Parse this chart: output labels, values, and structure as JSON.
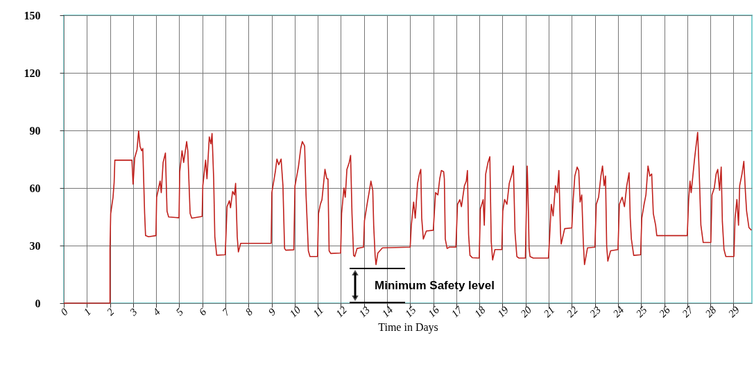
{
  "chart_data": {
    "type": "line",
    "xlabel": "Time in Days",
    "xlim": [
      0,
      29.8
    ],
    "xticks": [
      0,
      1,
      2,
      3,
      4,
      5,
      6,
      7,
      8,
      9,
      10,
      11,
      12,
      13,
      14,
      15,
      16,
      17,
      18,
      19,
      20,
      21,
      22,
      23,
      24,
      25,
      26,
      27,
      28,
      29
    ],
    "ylim": [
      0,
      150
    ],
    "yticks": [
      0,
      30,
      60,
      90,
      120,
      150
    ],
    "grid": true,
    "marker": "none",
    "line_style": "solid",
    "annotations": [
      "Minimum Safety level"
    ],
    "series": [
      {
        "color": "#c0201c",
        "x": [
          0,
          2.0,
          2.0,
          2.03,
          2.13,
          2.18,
          2.21,
          2.95,
          3.0,
          3.07,
          3.17,
          3.24,
          3.3,
          3.37,
          3.42,
          3.5,
          3.54,
          3.67,
          3.99,
          4.02,
          4.17,
          4.22,
          4.3,
          4.4,
          4.47,
          4.54,
          4.99,
          5.02,
          5.12,
          5.19,
          5.32,
          5.37,
          5.47,
          5.54,
          5.99,
          6.02,
          6.14,
          6.2,
          6.3,
          6.37,
          6.42,
          6.49,
          6.54,
          6.62,
          6.99,
          7.07,
          7.17,
          7.22,
          7.31,
          7.39,
          7.44,
          7.51,
          7.56,
          7.66,
          8.98,
          9.01,
          9.16,
          9.23,
          9.31,
          9.41,
          9.49,
          9.56,
          9.61,
          9.96,
          10.01,
          10.16,
          10.26,
          10.33,
          10.43,
          10.49,
          10.59,
          10.66,
          10.99,
          11.03,
          11.11,
          11.18,
          11.26,
          11.31,
          11.39,
          11.44,
          11.49,
          11.56,
          11.99,
          12.03,
          12.13,
          12.19,
          12.26,
          12.36,
          12.42,
          12.48,
          12.55,
          12.6,
          12.7,
          12.98,
          13.02,
          13.15,
          13.22,
          13.3,
          13.38,
          13.42,
          13.48,
          13.52,
          13.6,
          13.8,
          15.0,
          15.05,
          15.15,
          15.22,
          15.32,
          15.4,
          15.46,
          15.5,
          15.57,
          15.7,
          16.0,
          16.1,
          16.2,
          16.28,
          16.35,
          16.45,
          16.48,
          16.52,
          16.6,
          16.7,
          16.98,
          17.05,
          17.15,
          17.22,
          17.35,
          17.43,
          17.48,
          17.53,
          17.59,
          17.69,
          17.99,
          18.04,
          18.16,
          18.21,
          18.27,
          18.37,
          18.45,
          18.51,
          18.57,
          18.67,
          18.97,
          19.01,
          19.09,
          19.19,
          19.29,
          19.41,
          19.47,
          19.54,
          19.62,
          19.71,
          19.99,
          20.07,
          20.12,
          20.15,
          20.19,
          20.33,
          20.99,
          21.04,
          21.11,
          21.19,
          21.29,
          21.37,
          21.44,
          21.51,
          21.54,
          21.69,
          22.0,
          22.06,
          22.13,
          22.23,
          22.3,
          22.36,
          22.43,
          22.5,
          22.55,
          22.68,
          23.0,
          23.06,
          23.16,
          23.26,
          23.33,
          23.4,
          23.46,
          23.51,
          23.56,
          23.68,
          24.0,
          24.06,
          24.18,
          24.28,
          24.38,
          24.48,
          24.53,
          24.58,
          24.68,
          24.98,
          25.03,
          25.13,
          25.21,
          25.3,
          25.38,
          25.46,
          25.53,
          25.63,
          25.68,
          27.0,
          27.06,
          27.12,
          27.17,
          27.32,
          27.45,
          27.52,
          27.59,
          27.69,
          28.02,
          28.07,
          28.17,
          28.25,
          28.32,
          28.4,
          28.47,
          28.52,
          28.59,
          28.67,
          29.02,
          29.07,
          29.15,
          29.22,
          29.27,
          29.37,
          29.45,
          29.52,
          29.57,
          29.67,
          29.78
        ],
        "values": [
          0,
          0,
          28.5,
          46.7,
          55,
          63,
          74.5,
          74.5,
          62,
          75.7,
          80,
          89.7,
          81.8,
          79.4,
          80.6,
          46.7,
          35.2,
          34.6,
          35.2,
          55.2,
          63.6,
          57.6,
          73.3,
          78.2,
          47.9,
          44.9,
          44.5,
          68.5,
          79.4,
          73.3,
          84.2,
          79.4,
          46.7,
          44.3,
          45.2,
          61.2,
          74.5,
          64.8,
          86.6,
          83,
          88.4,
          64.8,
          34.6,
          25,
          25.2,
          50.3,
          53.4,
          49.7,
          58.2,
          56.4,
          62.4,
          34.6,
          26.7,
          31.2,
          31.2,
          57.6,
          68.5,
          75.1,
          72.1,
          75.1,
          61.2,
          28.5,
          27.6,
          27.8,
          61,
          71,
          80.6,
          84.2,
          81.8,
          56.4,
          27.3,
          24.3,
          24.3,
          46.7,
          51.5,
          53.9,
          63.6,
          69.7,
          64.8,
          64.8,
          27.3,
          25.9,
          26.1,
          46.7,
          60,
          55.2,
          69.7,
          73.3,
          77,
          46.7,
          24.9,
          24.3,
          28.5,
          29.2,
          43,
          52.7,
          57.6,
          63.6,
          58.8,
          40.6,
          25,
          20.1,
          26.1,
          28.8,
          29.2,
          40.6,
          52.7,
          44.3,
          62.4,
          67.3,
          69.7,
          44.3,
          33.4,
          37.6,
          38,
          57.6,
          56.4,
          64.8,
          69.1,
          68.5,
          64.8,
          33.4,
          28.5,
          29.2,
          29.2,
          51.5,
          53.9,
          50.3,
          61.2,
          63.6,
          69.1,
          35.8,
          24.9,
          23.7,
          23.5,
          49.1,
          53.9,
          40.6,
          67.3,
          73.3,
          76.3,
          32.2,
          22.5,
          27.9,
          27.9,
          47.9,
          54,
          51.5,
          62.4,
          67.3,
          71.5,
          37,
          24.3,
          23.5,
          23.5,
          71.5,
          48,
          28.5,
          24.3,
          23.5,
          23.5,
          34.6,
          51.5,
          45.5,
          61.2,
          57.6,
          69.1,
          37,
          30.8,
          38.8,
          39.2,
          54,
          66.2,
          70.9,
          69.1,
          52.7,
          56.4,
          31,
          20.1,
          28.8,
          29.2,
          51.5,
          55.2,
          66.2,
          71.5,
          61.2,
          66.2,
          29.8,
          21.9,
          27.3,
          27.9,
          51.5,
          55.2,
          50.3,
          61.2,
          67.9,
          44.3,
          33.4,
          24.9,
          25.2,
          44.3,
          51.5,
          56.4,
          71.5,
          66.2,
          67.3,
          46.7,
          40.6,
          35.2,
          35.2,
          54,
          63.6,
          57.6,
          75.7,
          89,
          67.3,
          40.6,
          31.6,
          31.6,
          56.4,
          60,
          67.3,
          69.7,
          58.8,
          70.9,
          42.5,
          28,
          24.3,
          24.3,
          44.3,
          54,
          40.6,
          61.2,
          67.3,
          73.9,
          57.6,
          47.9,
          39.4,
          38
        ]
      }
    ]
  }
}
